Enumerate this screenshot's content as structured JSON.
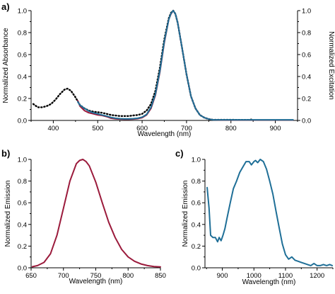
{
  "colors": {
    "axis": "#000000",
    "black_dotted": "#000000",
    "red": "#9b1b3c",
    "blue": "#1f6f97"
  },
  "chart_data": [
    {
      "panel_label": "a)",
      "type": "line",
      "xlabel": "Wavelength (nm)",
      "ylabel": "Normalized Absorbance",
      "y2label": "Normalized Excitation",
      "xlim": [
        350,
        950
      ],
      "ylim": [
        0,
        1.0
      ],
      "xticks": [
        400,
        500,
        600,
        700,
        800,
        900
      ],
      "yticks": [
        "0.0",
        "0.2",
        "0.4",
        "0.6",
        "0.8",
        "1.0"
      ],
      "series": [
        {
          "style": "black-dotted",
          "color": "#000000",
          "x": [
            355,
            365,
            375,
            385,
            395,
            405,
            415,
            425,
            432,
            440,
            450,
            460,
            470,
            480,
            490,
            500,
            510,
            520,
            530,
            540,
            550,
            560,
            570,
            580,
            590,
            600,
            610,
            620,
            630,
            640,
            650,
            660,
            665,
            670,
            675,
            680,
            690,
            700,
            710,
            720,
            730,
            740,
            750,
            760,
            780,
            800,
            820,
            840,
            850
          ],
          "y": [
            0.15,
            0.12,
            0.12,
            0.13,
            0.15,
            0.19,
            0.24,
            0.28,
            0.29,
            0.27,
            0.21,
            0.14,
            0.11,
            0.09,
            0.08,
            0.075,
            0.07,
            0.06,
            0.05,
            0.045,
            0.04,
            0.04,
            0.04,
            0.045,
            0.05,
            0.06,
            0.09,
            0.15,
            0.27,
            0.48,
            0.74,
            0.93,
            0.98,
            1.0,
            0.97,
            0.89,
            0.66,
            0.42,
            0.22,
            0.11,
            0.05,
            0.025,
            0.012,
            0.006,
            0.006,
            0.006,
            0.005,
            0.005,
            0.01
          ]
        },
        {
          "style": "red-solid",
          "color": "#9b1b3c",
          "x": [
            455,
            460,
            470,
            480,
            490,
            500,
            510,
            520,
            530,
            540,
            550,
            560,
            570,
            580,
            590,
            600,
            610,
            620,
            630,
            640,
            650,
            660,
            665,
            670,
            675,
            680,
            690,
            700,
            710,
            720,
            730,
            740,
            750,
            760,
            780,
            800,
            820,
            840,
            860,
            880,
            900,
            920,
            940
          ],
          "y": [
            0.18,
            0.13,
            0.09,
            0.07,
            0.06,
            0.05,
            0.045,
            0.035,
            0.02,
            0.015,
            0.012,
            0.01,
            0.01,
            0.012,
            0.016,
            0.025,
            0.05,
            0.11,
            0.23,
            0.44,
            0.71,
            0.92,
            0.97,
            1.0,
            0.97,
            0.89,
            0.66,
            0.42,
            0.22,
            0.11,
            0.05,
            0.025,
            0.012,
            0.006,
            0.004,
            0.004,
            0.004,
            0.004,
            0.004,
            0.004,
            0.004,
            0.004,
            0.004
          ]
        },
        {
          "style": "blue-solid",
          "color": "#1f6f97",
          "x": [
            455,
            460,
            470,
            480,
            490,
            500,
            510,
            520,
            530,
            540,
            550,
            560,
            570,
            580,
            590,
            600,
            610,
            620,
            630,
            640,
            650,
            660,
            665,
            670,
            675,
            680,
            690,
            700,
            710,
            720,
            730,
            740,
            750,
            760,
            780,
            800,
            820,
            840,
            860,
            880,
            900,
            920,
            940
          ],
          "y": [
            0.17,
            0.14,
            0.11,
            0.085,
            0.07,
            0.06,
            0.05,
            0.04,
            0.028,
            0.02,
            0.016,
            0.014,
            0.014,
            0.016,
            0.02,
            0.03,
            0.055,
            0.12,
            0.24,
            0.45,
            0.72,
            0.92,
            0.975,
            1.0,
            0.97,
            0.89,
            0.66,
            0.42,
            0.22,
            0.11,
            0.05,
            0.025,
            0.012,
            0.006,
            0.006,
            0.006,
            0.006,
            0.006,
            0.006,
            0.006,
            0.006,
            0.006,
            0.006
          ]
        }
      ]
    },
    {
      "panel_label": "b)",
      "type": "line",
      "xlabel": "Wavelength (nm)",
      "ylabel": "Normalized Emission",
      "xlim": [
        650,
        850
      ],
      "ylim": [
        0,
        1.0
      ],
      "xticks": [
        650,
        700,
        750,
        800,
        850
      ],
      "yticks": [
        "0.0",
        "0.2",
        "0.4",
        "0.6",
        "0.8",
        "1.0"
      ],
      "series": [
        {
          "style": "red-solid",
          "color": "#9b1b3c",
          "x": [
            652,
            660,
            670,
            680,
            690,
            700,
            710,
            720,
            725,
            730,
            735,
            740,
            750,
            760,
            770,
            780,
            790,
            800,
            810,
            820,
            830,
            840,
            850
          ],
          "y": [
            0.01,
            0.02,
            0.05,
            0.13,
            0.3,
            0.55,
            0.8,
            0.96,
            0.99,
            1.0,
            0.98,
            0.94,
            0.79,
            0.6,
            0.42,
            0.28,
            0.17,
            0.1,
            0.06,
            0.035,
            0.02,
            0.012,
            0.008
          ]
        }
      ]
    },
    {
      "panel_label": "c)",
      "type": "line",
      "xlabel": "Wavelength (nm)",
      "ylabel": "Normalized Emission",
      "xlim": [
        845,
        1250
      ],
      "ylim": [
        0,
        1.0
      ],
      "xticks": [
        900,
        1000,
        1100,
        1200
      ],
      "yticks": [
        "0.0",
        "0.2",
        "0.4",
        "0.6",
        "0.8",
        "1.0"
      ],
      "series": [
        {
          "style": "blue-solid",
          "color": "#1f6f97",
          "x": [
            852,
            858,
            863,
            870,
            878,
            885,
            890,
            896,
            902,
            908,
            915,
            925,
            935,
            945,
            955,
            965,
            975,
            985,
            992,
            1000,
            1005,
            1012,
            1020,
            1025,
            1030,
            1040,
            1050,
            1060,
            1070,
            1080,
            1090,
            1100,
            1110,
            1120,
            1130,
            1140,
            1150,
            1160,
            1170,
            1180,
            1190,
            1200,
            1210,
            1220,
            1230,
            1240,
            1248
          ],
          "y": [
            0.74,
            0.55,
            0.3,
            0.28,
            0.28,
            0.24,
            0.28,
            0.25,
            0.3,
            0.36,
            0.46,
            0.6,
            0.73,
            0.8,
            0.88,
            0.93,
            0.98,
            0.98,
            0.95,
            0.98,
            0.99,
            0.97,
            1.0,
            0.99,
            0.98,
            0.91,
            0.8,
            0.68,
            0.52,
            0.37,
            0.22,
            0.12,
            0.08,
            0.1,
            0.07,
            0.06,
            0.05,
            0.04,
            0.03,
            0.02,
            0.04,
            0.02,
            0.02,
            0.03,
            0.02,
            0.03,
            0.02
          ]
        }
      ]
    }
  ]
}
